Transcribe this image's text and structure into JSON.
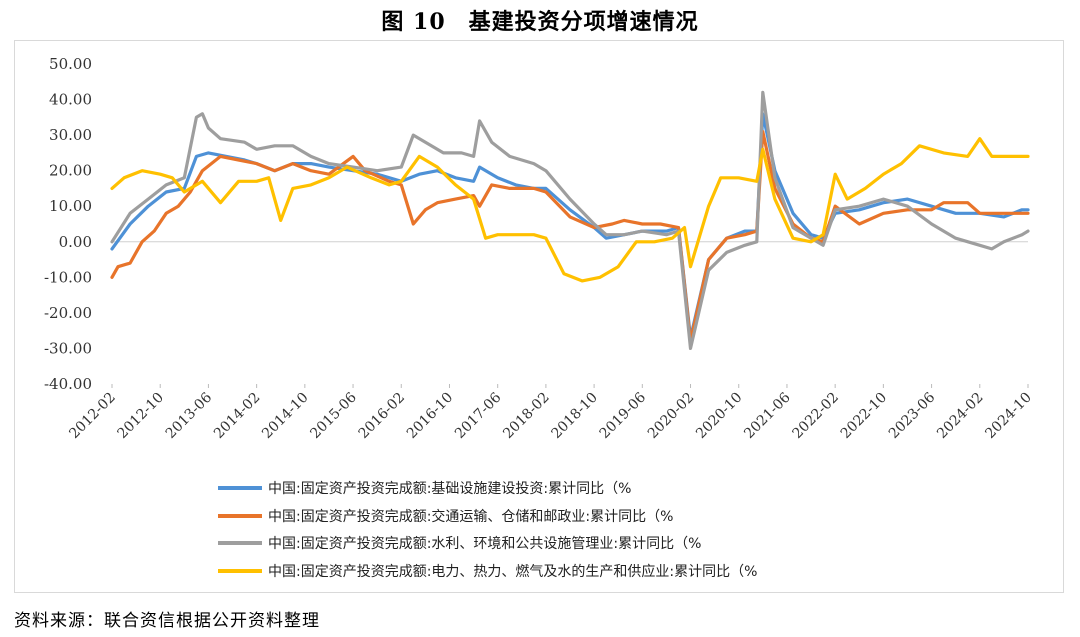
{
  "figure": {
    "title": "图 10　基建投资分项增速情况",
    "source": "资料来源：联合资信根据公开资料整理"
  },
  "chart_data": {
    "type": "line",
    "title": "图 10　基建投资分项增速情况",
    "xlabel": "",
    "ylabel": "",
    "ylim": [
      -40,
      50
    ],
    "yticks": [
      50,
      40,
      30,
      20,
      10,
      0,
      -10,
      -20,
      -30,
      -40
    ],
    "ytick_labels": [
      "50.00",
      "40.00",
      "30.00",
      "20.00",
      "10.00",
      "0.00",
      "-10.00",
      "-20.00",
      "-30.00",
      "-40.00"
    ],
    "x_start": "2012-02",
    "x_end": "2024-10",
    "x_tick_labels": [
      "2012-02",
      "2012-10",
      "2013-06",
      "2014-02",
      "2014-10",
      "2015-06",
      "2016-02",
      "2016-10",
      "2017-06",
      "2018-02",
      "2018-10",
      "2019-06",
      "2020-02",
      "2020-10",
      "2021-06",
      "2022-02",
      "2022-10",
      "2023-06",
      "2024-02",
      "2024-10"
    ],
    "grid": false,
    "legend": "bottom",
    "series": [
      {
        "name": "中国:固定资产投资完成额:基础设施建设投资:累计同比（%",
        "color": "#4e91d6",
        "points": [
          [
            "2012-02",
            -2
          ],
          [
            "2012-05",
            5
          ],
          [
            "2012-08",
            10
          ],
          [
            "2012-11",
            14
          ],
          [
            "2013-02",
            15
          ],
          [
            "2013-04",
            24
          ],
          [
            "2013-06",
            25
          ],
          [
            "2013-09",
            24
          ],
          [
            "2013-12",
            23
          ],
          [
            "2014-02",
            22
          ],
          [
            "2014-05",
            20
          ],
          [
            "2014-08",
            22
          ],
          [
            "2014-11",
            22
          ],
          [
            "2015-02",
            21
          ],
          [
            "2015-06",
            20
          ],
          [
            "2015-10",
            19
          ],
          [
            "2016-02",
            17
          ],
          [
            "2016-05",
            19
          ],
          [
            "2016-08",
            20
          ],
          [
            "2016-11",
            18
          ],
          [
            "2017-02",
            17
          ],
          [
            "2017-03",
            21
          ],
          [
            "2017-06",
            18
          ],
          [
            "2017-09",
            16
          ],
          [
            "2017-12",
            15
          ],
          [
            "2018-02",
            15
          ],
          [
            "2018-06",
            9
          ],
          [
            "2018-10",
            4
          ],
          [
            "2018-12",
            1
          ],
          [
            "2019-03",
            2
          ],
          [
            "2019-06",
            3
          ],
          [
            "2019-10",
            3
          ],
          [
            "2019-12",
            4
          ],
          [
            "2020-02",
            -27
          ],
          [
            "2020-05",
            -5
          ],
          [
            "2020-08",
            1
          ],
          [
            "2020-11",
            3
          ],
          [
            "2021-01",
            3
          ],
          [
            "2021-02",
            36
          ],
          [
            "2021-04",
            20
          ],
          [
            "2021-07",
            8
          ],
          [
            "2021-10",
            2
          ],
          [
            "2021-12",
            1
          ],
          [
            "2022-02",
            8
          ],
          [
            "2022-06",
            9
          ],
          [
            "2022-10",
            11
          ],
          [
            "2023-02",
            12
          ],
          [
            "2023-06",
            10
          ],
          [
            "2023-10",
            8
          ],
          [
            "2024-02",
            8
          ],
          [
            "2024-06",
            7
          ],
          [
            "2024-09",
            9
          ],
          [
            "2024-10",
            9
          ]
        ]
      },
      {
        "name": "中国:固定资产投资完成额:交通运输、仓储和邮政业:累计同比（%",
        "color": "#e8742a",
        "points": [
          [
            "2012-02",
            -10
          ],
          [
            "2012-03",
            -7
          ],
          [
            "2012-05",
            -6
          ],
          [
            "2012-07",
            0
          ],
          [
            "2012-09",
            3
          ],
          [
            "2012-11",
            8
          ],
          [
            "2013-01",
            10
          ],
          [
            "2013-03",
            14
          ],
          [
            "2013-05",
            20
          ],
          [
            "2013-08",
            24
          ],
          [
            "2013-11",
            23
          ],
          [
            "2014-02",
            22
          ],
          [
            "2014-05",
            20
          ],
          [
            "2014-08",
            22
          ],
          [
            "2014-11",
            20
          ],
          [
            "2015-02",
            19
          ],
          [
            "2015-06",
            24
          ],
          [
            "2015-08",
            20
          ],
          [
            "2015-12",
            17
          ],
          [
            "2016-02",
            16
          ],
          [
            "2016-04",
            5
          ],
          [
            "2016-06",
            9
          ],
          [
            "2016-08",
            11
          ],
          [
            "2016-11",
            12
          ],
          [
            "2017-02",
            13
          ],
          [
            "2017-03",
            10
          ],
          [
            "2017-05",
            16
          ],
          [
            "2017-08",
            15
          ],
          [
            "2017-12",
            15
          ],
          [
            "2018-02",
            14
          ],
          [
            "2018-06",
            7
          ],
          [
            "2018-10",
            4
          ],
          [
            "2019-01",
            5
          ],
          [
            "2019-03",
            6
          ],
          [
            "2019-06",
            5
          ],
          [
            "2019-09",
            5
          ],
          [
            "2019-12",
            4
          ],
          [
            "2020-02",
            -28
          ],
          [
            "2020-05",
            -5
          ],
          [
            "2020-08",
            1
          ],
          [
            "2020-11",
            2
          ],
          [
            "2021-01",
            3
          ],
          [
            "2021-02",
            31
          ],
          [
            "2021-04",
            15
          ],
          [
            "2021-07",
            5
          ],
          [
            "2021-10",
            1
          ],
          [
            "2021-12",
            0
          ],
          [
            "2022-02",
            10
          ],
          [
            "2022-06",
            5
          ],
          [
            "2022-10",
            8
          ],
          [
            "2023-02",
            9
          ],
          [
            "2023-06",
            9
          ],
          [
            "2023-08",
            11
          ],
          [
            "2023-12",
            11
          ],
          [
            "2024-02",
            8
          ],
          [
            "2024-06",
            8
          ],
          [
            "2024-10",
            8
          ]
        ]
      },
      {
        "name": "中国:固定资产投资完成额:水利、环境和公共设施管理业:累计同比（%",
        "color": "#9e9e9e",
        "points": [
          [
            "2012-02",
            0
          ],
          [
            "2012-05",
            8
          ],
          [
            "2012-08",
            12
          ],
          [
            "2012-11",
            16
          ],
          [
            "2013-02",
            18
          ],
          [
            "2013-04",
            35
          ],
          [
            "2013-05",
            36
          ],
          [
            "2013-06",
            32
          ],
          [
            "2013-08",
            29
          ],
          [
            "2013-12",
            28
          ],
          [
            "2014-02",
            26
          ],
          [
            "2014-05",
            27
          ],
          [
            "2014-08",
            27
          ],
          [
            "2014-11",
            24
          ],
          [
            "2015-02",
            22
          ],
          [
            "2015-06",
            21
          ],
          [
            "2015-10",
            20
          ],
          [
            "2016-02",
            21
          ],
          [
            "2016-04",
            30
          ],
          [
            "2016-06",
            28
          ],
          [
            "2016-09",
            25
          ],
          [
            "2016-12",
            25
          ],
          [
            "2017-02",
            24
          ],
          [
            "2017-03",
            34
          ],
          [
            "2017-05",
            28
          ],
          [
            "2017-08",
            24
          ],
          [
            "2017-12",
            22
          ],
          [
            "2018-02",
            20
          ],
          [
            "2018-06",
            12
          ],
          [
            "2018-10",
            5
          ],
          [
            "2018-12",
            2
          ],
          [
            "2019-03",
            2
          ],
          [
            "2019-06",
            3
          ],
          [
            "2019-10",
            2
          ],
          [
            "2019-12",
            3
          ],
          [
            "2020-02",
            -30
          ],
          [
            "2020-05",
            -8
          ],
          [
            "2020-08",
            -3
          ],
          [
            "2020-11",
            -1
          ],
          [
            "2021-01",
            0
          ],
          [
            "2021-02",
            42
          ],
          [
            "2021-04",
            18
          ],
          [
            "2021-07",
            4
          ],
          [
            "2021-10",
            1
          ],
          [
            "2021-12",
            -1
          ],
          [
            "2022-02",
            9
          ],
          [
            "2022-06",
            10
          ],
          [
            "2022-10",
            12
          ],
          [
            "2023-02",
            10
          ],
          [
            "2023-06",
            5
          ],
          [
            "2023-10",
            1
          ],
          [
            "2024-02",
            -1
          ],
          [
            "2024-04",
            -2
          ],
          [
            "2024-06",
            0
          ],
          [
            "2024-09",
            2
          ],
          [
            "2024-10",
            3
          ]
        ]
      },
      {
        "name": "中国:固定资产投资完成额:电力、热力、燃气及水的生产和供应业:累计同比（%",
        "color": "#ffc000",
        "points": [
          [
            "2012-02",
            15
          ],
          [
            "2012-04",
            18
          ],
          [
            "2012-07",
            20
          ],
          [
            "2012-10",
            19
          ],
          [
            "2012-12",
            18
          ],
          [
            "2013-02",
            14
          ],
          [
            "2013-05",
            17
          ],
          [
            "2013-08",
            11
          ],
          [
            "2013-11",
            17
          ],
          [
            "2014-02",
            17
          ],
          [
            "2014-04",
            18
          ],
          [
            "2014-06",
            6
          ],
          [
            "2014-08",
            15
          ],
          [
            "2014-11",
            16
          ],
          [
            "2015-02",
            18
          ],
          [
            "2015-05",
            21
          ],
          [
            "2015-09",
            18
          ],
          [
            "2015-12",
            16
          ],
          [
            "2016-02",
            17
          ],
          [
            "2016-05",
            24
          ],
          [
            "2016-08",
            21
          ],
          [
            "2016-11",
            16
          ],
          [
            "2017-02",
            12
          ],
          [
            "2017-04",
            1
          ],
          [
            "2017-06",
            2
          ],
          [
            "2017-09",
            2
          ],
          [
            "2017-12",
            2
          ],
          [
            "2018-02",
            1
          ],
          [
            "2018-05",
            -9
          ],
          [
            "2018-08",
            -11
          ],
          [
            "2018-11",
            -10
          ],
          [
            "2019-02",
            -7
          ],
          [
            "2019-05",
            0
          ],
          [
            "2019-08",
            0
          ],
          [
            "2019-11",
            1
          ],
          [
            "2020-01",
            4
          ],
          [
            "2020-02",
            -7
          ],
          [
            "2020-05",
            10
          ],
          [
            "2020-07",
            18
          ],
          [
            "2020-10",
            18
          ],
          [
            "2021-01",
            17
          ],
          [
            "2021-02",
            26
          ],
          [
            "2021-04",
            12
          ],
          [
            "2021-07",
            1
          ],
          [
            "2021-10",
            0
          ],
          [
            "2021-12",
            2
          ],
          [
            "2022-02",
            19
          ],
          [
            "2022-04",
            12
          ],
          [
            "2022-07",
            15
          ],
          [
            "2022-10",
            19
          ],
          [
            "2023-01",
            22
          ],
          [
            "2023-04",
            27
          ],
          [
            "2023-08",
            25
          ],
          [
            "2023-12",
            24
          ],
          [
            "2024-02",
            29
          ],
          [
            "2024-04",
            24
          ],
          [
            "2024-07",
            24
          ],
          [
            "2024-09",
            24
          ],
          [
            "2024-10",
            24
          ]
        ]
      }
    ]
  }
}
